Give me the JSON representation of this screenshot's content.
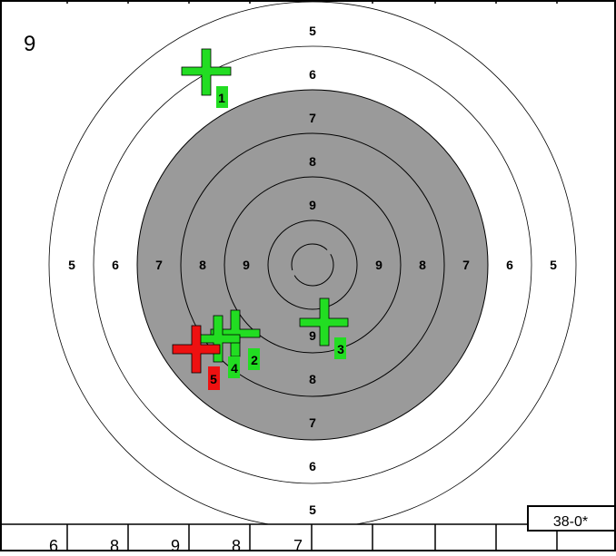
{
  "card": {
    "series_number": "9",
    "total_score": "38-0*"
  },
  "ring_labels": {
    "top": [
      "5",
      "6",
      "7",
      "8",
      "9"
    ],
    "bottom": [
      "9",
      "8",
      "7",
      "6",
      "5"
    ],
    "left": [
      "5",
      "6",
      "7",
      "8",
      "9"
    ],
    "right": [
      "9",
      "8",
      "7",
      "6",
      "5"
    ]
  },
  "shots": [
    {
      "number": "1",
      "state": "scored"
    },
    {
      "number": "2",
      "state": "scored"
    },
    {
      "number": "3",
      "state": "scored"
    },
    {
      "number": "4",
      "state": "scored"
    },
    {
      "number": "5",
      "state": "last"
    }
  ],
  "shot_values": [
    "6",
    "8",
    "9",
    "8",
    "7"
  ],
  "colors": {
    "scored_shot": "#22dd22",
    "last_shot": "#ee1111",
    "black_zone": "#9a9a9a",
    "border": "#000000"
  }
}
